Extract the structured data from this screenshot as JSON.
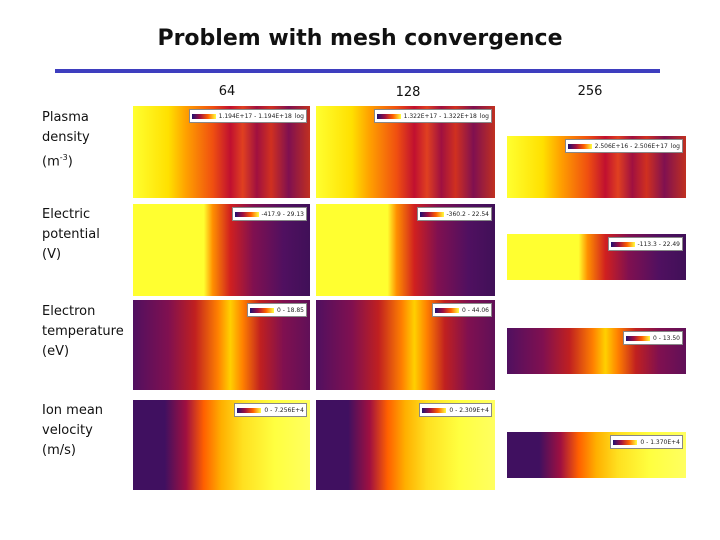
{
  "title": "Problem with mesh convergence",
  "columns": [
    "64",
    "128",
    "256"
  ],
  "rows": [
    {
      "label": [
        "Plasma",
        "density",
        [
          "(m",
          "-3",
          ")"
        ]
      ],
      "panels": [
        {
          "range": "1.194E+17 - 1.194E+18",
          "scale": "log"
        },
        {
          "range": "1.322E+17 - 1.322E+18",
          "scale": "log"
        },
        {
          "range": "2.506E+16 - 2.506E+17",
          "scale": "log"
        }
      ]
    },
    {
      "label": [
        "Electric",
        "potential",
        "(V)"
      ],
      "panels": [
        {
          "range": "-417.9 - 29.13"
        },
        {
          "range": "-360.2 - 22.54"
        },
        {
          "range": "-113.3 - 22.49"
        }
      ]
    },
    {
      "label": [
        "Electron",
        "temperature",
        "(eV)"
      ],
      "panels": [
        {
          "range": "0 - 18.85"
        },
        {
          "range": "0 - 44.06"
        },
        {
          "range": "0 - 13.50"
        }
      ]
    },
    {
      "label": [
        "Ion mean",
        "velocity",
        "(m/s)"
      ],
      "panels": [
        {
          "range": "0 - 7.256E+4"
        },
        {
          "range": "0 - 2.309E+4"
        },
        {
          "range": "0 - 1.370E+4"
        }
      ]
    }
  ]
}
